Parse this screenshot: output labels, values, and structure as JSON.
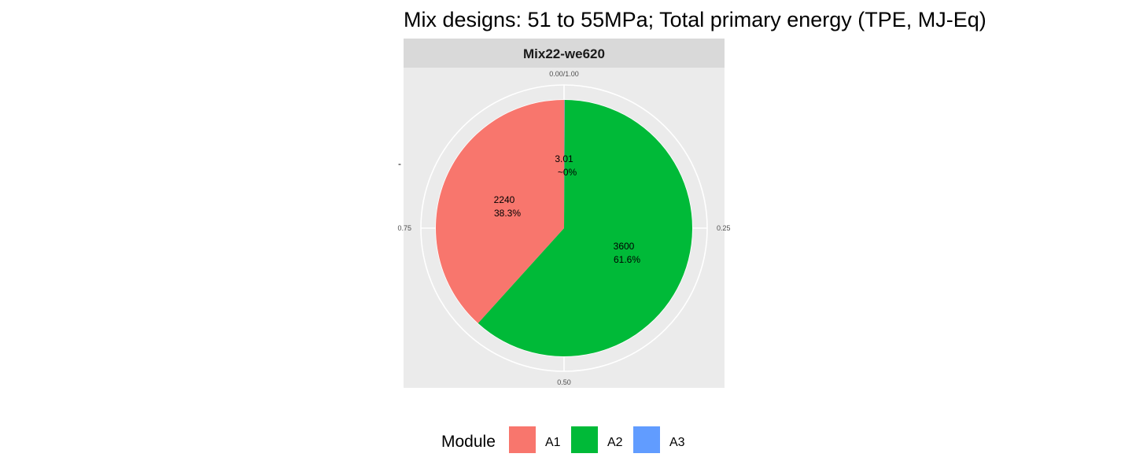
{
  "chart_data": {
    "type": "pie",
    "title": "Mix designs: 51 to 55MPa; Total primary energy (TPE, MJ-Eq)",
    "panel_label": "Mix22-we620",
    "theta_ticks": [
      "0.00/1.00",
      "0.25",
      "0.50",
      "0.75"
    ],
    "y_axis_tick": "-",
    "slices": [
      {
        "category": "A1",
        "value": 2240,
        "value_label": "2240",
        "percent_label": "38.3%",
        "fraction": 0.383,
        "color": "#F8766D"
      },
      {
        "category": "A2",
        "value": 3600,
        "value_label": "3600",
        "percent_label": "61.6%",
        "fraction": 0.616,
        "color": "#00BA38"
      },
      {
        "category": "A3",
        "value": 3.01,
        "value_label": "3.01",
        "percent_label": "~0%",
        "fraction": 0.0005,
        "color": "#619CFF"
      }
    ],
    "legend": {
      "title": "Module",
      "position": "bottom",
      "items": [
        {
          "label": "A1",
          "color": "#F8766D"
        },
        {
          "label": "A2",
          "color": "#00BA38"
        },
        {
          "label": "A3",
          "color": "#619CFF"
        }
      ]
    },
    "colors": {
      "panel_background": "#EBEBEB",
      "strip_background": "#D9D9D9",
      "grid": "#FFFFFF"
    },
    "grid": true
  }
}
